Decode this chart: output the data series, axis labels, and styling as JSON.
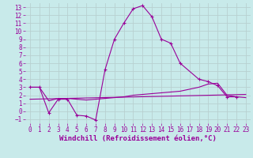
{
  "background_color": "#c8eaea",
  "grid_color": "#b8d0d0",
  "line_color": "#990099",
  "xlabel": "Windchill (Refroidissement éolien,°C)",
  "xlabel_fontsize": 6.5,
  "tick_fontsize": 5.5,
  "xlim": [
    -0.5,
    23.5
  ],
  "ylim": [
    -1.5,
    13.5
  ],
  "yticks": [
    -1,
    0,
    1,
    2,
    3,
    4,
    5,
    6,
    7,
    8,
    9,
    10,
    11,
    12,
    13
  ],
  "xticks": [
    0,
    1,
    2,
    3,
    4,
    5,
    6,
    7,
    8,
    9,
    10,
    11,
    12,
    13,
    14,
    15,
    16,
    17,
    18,
    19,
    20,
    21,
    22,
    23
  ],
  "curve1_x": [
    0,
    1,
    2,
    3,
    4,
    5,
    6,
    7,
    8,
    9,
    10,
    11,
    12,
    13,
    14,
    15,
    16,
    18,
    19,
    20,
    21,
    22
  ],
  "curve1_y": [
    3.0,
    3.0,
    -0.2,
    1.5,
    1.5,
    -0.5,
    -0.6,
    -1.1,
    5.2,
    9.0,
    11.0,
    12.8,
    13.2,
    11.8,
    9.0,
    8.5,
    6.0,
    4.0,
    3.7,
    3.2,
    1.8,
    1.8
  ],
  "curve2_x": [
    0,
    1,
    2,
    3,
    4,
    5,
    6,
    7,
    8,
    9,
    10,
    11,
    12,
    13,
    14,
    15,
    16,
    18,
    19,
    20,
    21,
    22,
    23
  ],
  "curve2_y": [
    3.0,
    3.0,
    1.3,
    1.6,
    1.6,
    1.5,
    1.4,
    1.5,
    1.6,
    1.7,
    1.8,
    2.0,
    2.1,
    2.2,
    2.3,
    2.4,
    2.5,
    3.0,
    3.4,
    3.5,
    2.0,
    1.8,
    1.7
  ],
  "curve3_x": [
    0,
    23
  ],
  "curve3_y": [
    1.5,
    2.1
  ]
}
